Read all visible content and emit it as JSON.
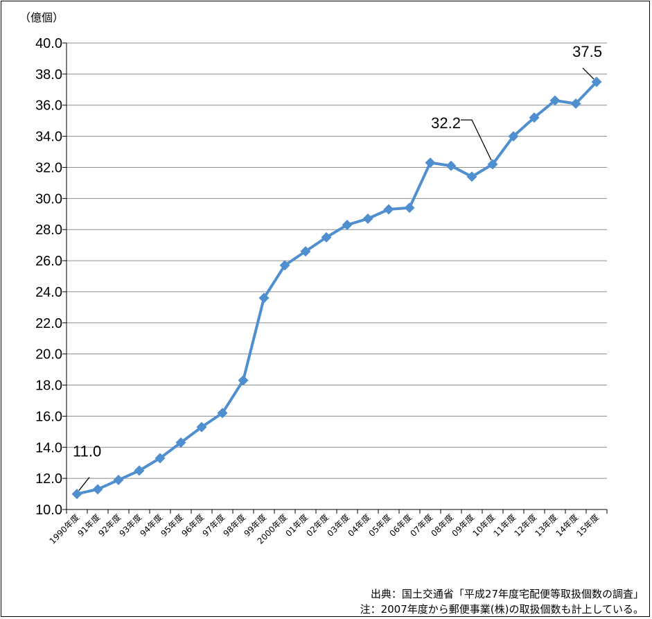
{
  "chart_data": {
    "type": "line",
    "unit_label": "（億個）",
    "categories": [
      "1990年度",
      "91年度",
      "92年度",
      "93年度",
      "94年度",
      "95年度",
      "96年度",
      "97年度",
      "98年度",
      "99年度",
      "2000年度",
      "01年度",
      "02年度",
      "03年度",
      "04年度",
      "05年度",
      "06年度",
      "07年度",
      "08年度",
      "09年度",
      "10年度",
      "11年度",
      "12年度",
      "13年度",
      "14年度",
      "15年度"
    ],
    "values": [
      11.0,
      11.3,
      11.9,
      12.5,
      13.3,
      14.3,
      15.3,
      16.2,
      18.3,
      23.6,
      25.7,
      26.6,
      27.5,
      28.3,
      28.7,
      29.3,
      29.4,
      32.3,
      32.1,
      31.4,
      32.2,
      34.0,
      35.2,
      36.3,
      36.1,
      37.5
    ],
    "ylim": [
      10.0,
      40.0
    ],
    "y_ticks": [
      "10.0",
      "12.0",
      "14.0",
      "16.0",
      "18.0",
      "20.0",
      "22.0",
      "24.0",
      "26.0",
      "28.0",
      "30.0",
      "32.0",
      "34.0",
      "36.0",
      "38.0",
      "40.0"
    ],
    "grid": true,
    "series_color": "#4f8fd0",
    "annotations": [
      {
        "category": "1990年度",
        "text": "11.0"
      },
      {
        "category": "10年度",
        "text": "32.2"
      },
      {
        "category": "15年度",
        "text": "37.5"
      }
    ]
  },
  "notes": {
    "source": "出典：国土交通省「平成27年度宅配便等取扱個数の調査」",
    "footnote": "注：2007年度から郵便事業(株)の取扱個数も計上している。"
  }
}
